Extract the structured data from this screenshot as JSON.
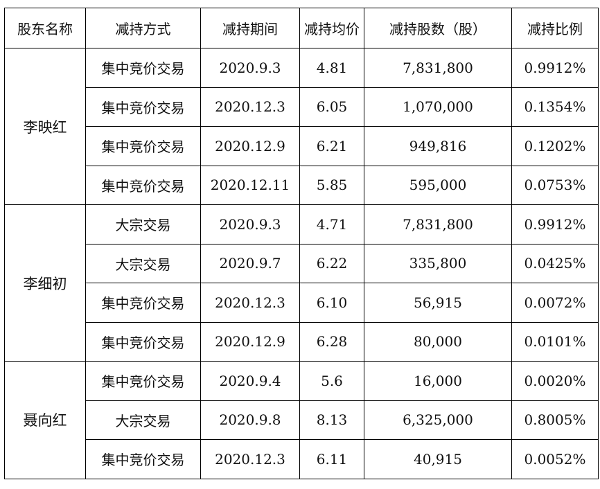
{
  "headers": [
    "股东名称",
    "减持方式",
    "减持期间",
    "减持均价",
    "减持股数（股）",
    "减持比例"
  ],
  "groups": [
    {
      "holder": "李映红",
      "rows": [
        {
          "method": "集中竞价交易",
          "period": "2020.9.3",
          "price": "4.81",
          "shares": "7,831,800",
          "ratio": "0.9912%"
        },
        {
          "method": "集中竞价交易",
          "period": "2020.12.3",
          "price": "6.05",
          "shares": "1,070,000",
          "ratio": "0.1354%"
        },
        {
          "method": "集中竞价交易",
          "period": "2020.12.9",
          "price": "6.21",
          "shares": "949,816",
          "ratio": "0.1202%"
        },
        {
          "method": "集中竞价交易",
          "period": "2020.12.11",
          "price": "5.85",
          "shares": "595,000",
          "ratio": "0.0753%"
        }
      ]
    },
    {
      "holder": "李细初",
      "rows": [
        {
          "method": "大宗交易",
          "period": "2020.9.3",
          "price": "4.71",
          "shares": "7,831,800",
          "ratio": "0.9912%"
        },
        {
          "method": "大宗交易",
          "period": "2020.9.7",
          "price": "6.22",
          "shares": "335,800",
          "ratio": "0.0425%"
        },
        {
          "method": "集中竞价交易",
          "period": "2020.12.3",
          "price": "6.10",
          "shares": "56,915",
          "ratio": "0.0072%"
        },
        {
          "method": "集中竞价交易",
          "period": "2020.12.9",
          "price": "6.28",
          "shares": "80,000",
          "ratio": "0.0101%"
        }
      ]
    },
    {
      "holder": "聂向红",
      "rows": [
        {
          "method": "集中竞价交易",
          "period": "2020.9.4",
          "price": "5.6",
          "shares": "16,000",
          "ratio": "0.0020%"
        },
        {
          "method": "大宗交易",
          "period": "2020.9.8",
          "price": "8.13",
          "shares": "6,325,000",
          "ratio": "0.8005%"
        },
        {
          "method": "集中竞价交易",
          "period": "2020.12.3",
          "price": "6.11",
          "shares": "40,915",
          "ratio": "0.0052%"
        }
      ]
    }
  ]
}
